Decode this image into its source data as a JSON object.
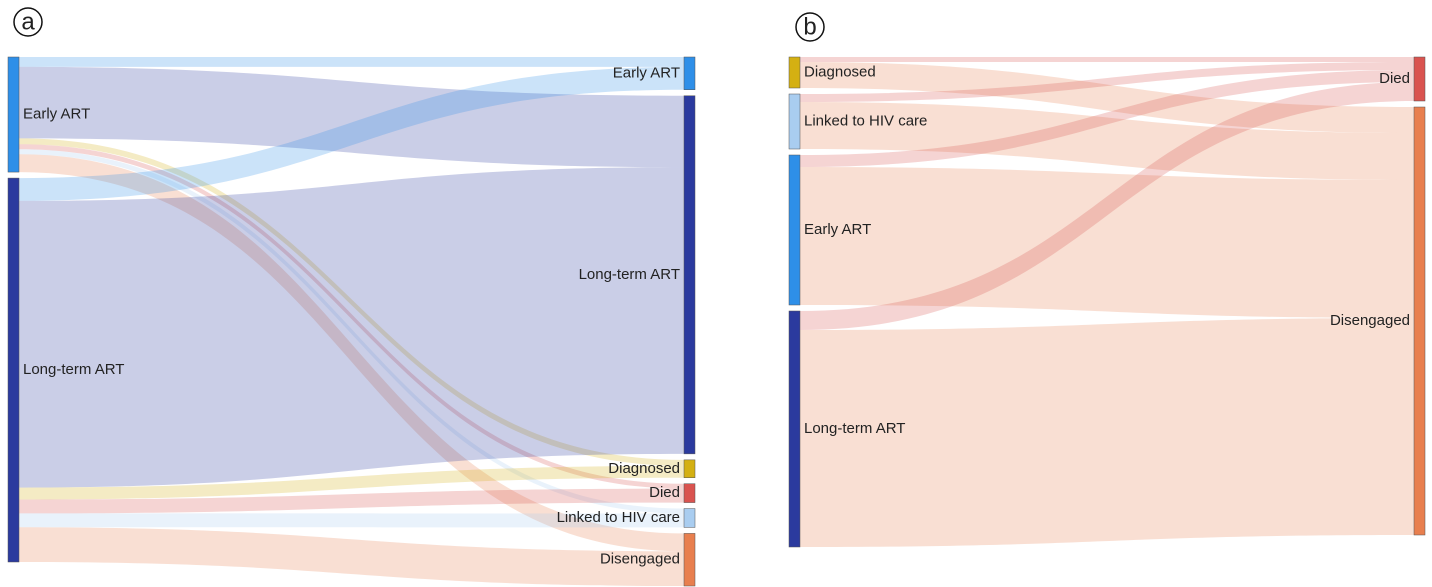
{
  "chart_data": [
    {
      "type": "sankey",
      "panel_label": "a",
      "sources": [
        {
          "name": "Early ART",
          "color": "#2e8fe8"
        },
        {
          "name": "Long-term ART",
          "color": "#2b3a9e"
        }
      ],
      "targets": [
        {
          "name": "Early ART",
          "color": "#2e8fe8"
        },
        {
          "name": "Long-term ART",
          "color": "#2b3a9e"
        },
        {
          "name": "Diagnosed",
          "color": "#d4b012"
        },
        {
          "name": "Died",
          "color": "#d9534f"
        },
        {
          "name": "Linked to HIV care",
          "color": "#a9cdf0"
        },
        {
          "name": "Disengaged",
          "color": "#e87f4e"
        }
      ],
      "links": [
        {
          "source": 0,
          "target": 0,
          "value": 10
        },
        {
          "source": 0,
          "target": 1,
          "value": 72
        },
        {
          "source": 0,
          "target": 2,
          "value": 6
        },
        {
          "source": 0,
          "target": 3,
          "value": 5
        },
        {
          "source": 0,
          "target": 4,
          "value": 5
        },
        {
          "source": 0,
          "target": 5,
          "value": 18
        },
        {
          "source": 1,
          "target": 0,
          "value": 23
        },
        {
          "source": 1,
          "target": 1,
          "value": 289
        },
        {
          "source": 1,
          "target": 2,
          "value": 12
        },
        {
          "source": 1,
          "target": 3,
          "value": 14
        },
        {
          "source": 1,
          "target": 4,
          "value": 14
        },
        {
          "source": 1,
          "target": 5,
          "value": 35
        }
      ]
    },
    {
      "type": "sankey",
      "panel_label": "b",
      "sources": [
        {
          "name": "Diagnosed",
          "color": "#d4b012"
        },
        {
          "name": "Linked to HIV care",
          "color": "#a9cdf0"
        },
        {
          "name": "Early ART",
          "color": "#2e8fe8"
        },
        {
          "name": "Long-term ART",
          "color": "#2b3a9e"
        }
      ],
      "targets": [
        {
          "name": "Died",
          "color": "#d9534f"
        },
        {
          "name": "Disengaged",
          "color": "#e87f4e"
        }
      ],
      "links": [
        {
          "source": 0,
          "target": 0,
          "value": 5
        },
        {
          "source": 0,
          "target": 1,
          "value": 26
        },
        {
          "source": 1,
          "target": 0,
          "value": 8
        },
        {
          "source": 1,
          "target": 1,
          "value": 47
        },
        {
          "source": 2,
          "target": 0,
          "value": 12
        },
        {
          "source": 2,
          "target": 1,
          "value": 138
        },
        {
          "source": 3,
          "target": 0,
          "value": 19
        },
        {
          "source": 3,
          "target": 1,
          "value": 217
        }
      ]
    }
  ]
}
